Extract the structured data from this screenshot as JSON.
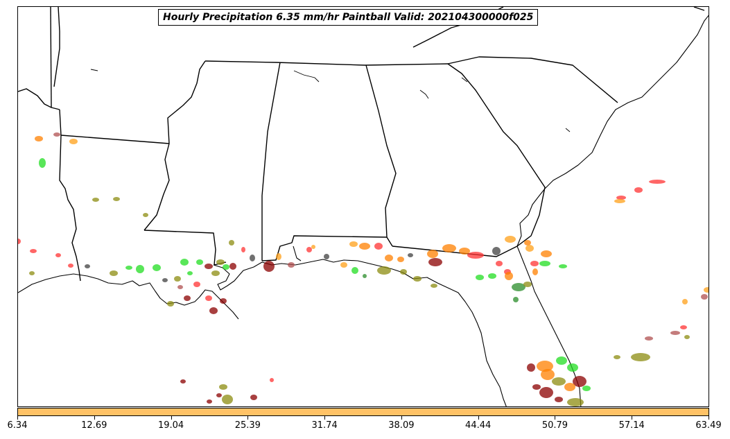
{
  "title": "Hourly Precipitation 6.35 mm/hr Paintball Valid: 202104300000f025",
  "colorbar": {
    "fill_color": "#ffc266",
    "ticks": [
      "6.34",
      "12.69",
      "19.04",
      "25.39",
      "31.74",
      "38.09",
      "44.44",
      "50.79",
      "57.14",
      "63.49"
    ]
  },
  "map": {
    "background": "#ffffff",
    "border_color": "#000000",
    "member_colors": [
      "#ff3333",
      "#ff8000",
      "#ffa01a",
      "#22dd22",
      "#2a8c2a",
      "#8c8c10",
      "#8b0000",
      "#b05050",
      "#404040"
    ]
  }
}
